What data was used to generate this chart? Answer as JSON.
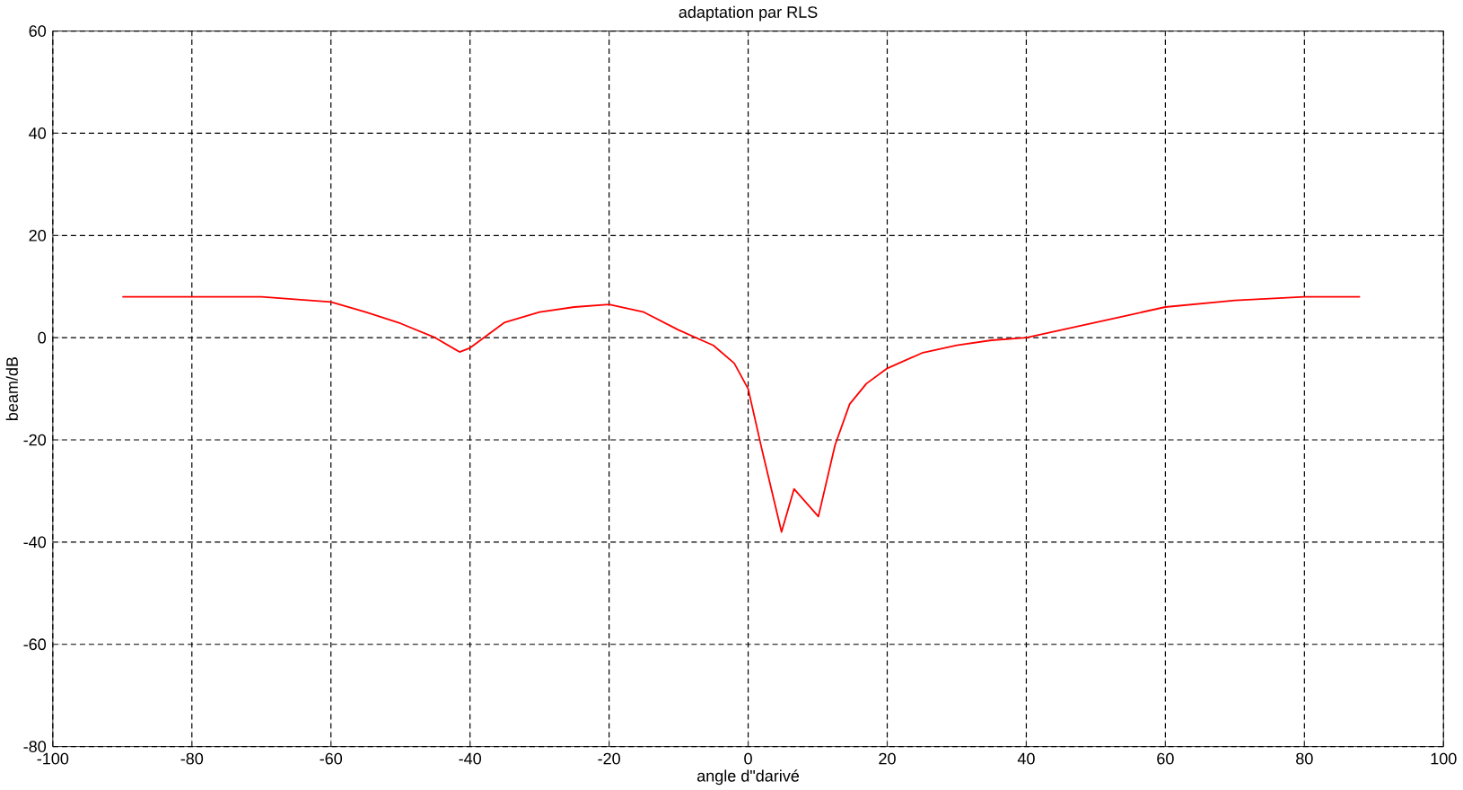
{
  "chart_data": {
    "type": "line",
    "title": "adaptation par RLS",
    "xlabel": "angle d\"darivé",
    "ylabel": "beam/dB",
    "xlim": [
      -100,
      100
    ],
    "ylim": [
      -80,
      60
    ],
    "xticks": [
      -100,
      -80,
      -60,
      -40,
      -20,
      0,
      20,
      40,
      60,
      80,
      100
    ],
    "yticks": [
      -80,
      -60,
      -40,
      -20,
      0,
      20,
      40,
      60
    ],
    "grid": true,
    "series": [
      {
        "color": "#ff0000",
        "x": [
          -90,
          -80,
          -70,
          -60,
          -55,
          -50,
          -45,
          -41.5,
          -40,
          -35,
          -30,
          -25,
          -20,
          -15,
          -10,
          -5,
          -2,
          0,
          2,
          4.8,
          6.6,
          10.1,
          12.5,
          14.6,
          17,
          20,
          25,
          30,
          35,
          40,
          45,
          50,
          55,
          60,
          70,
          80,
          88
        ],
        "values": [
          8,
          8,
          8,
          7,
          5,
          2.8,
          0,
          -2.8,
          -2,
          3,
          5,
          6,
          6.5,
          5,
          1.5,
          -1.5,
          -5,
          -10,
          -22,
          -38,
          -29.6,
          -35,
          -21,
          -13,
          -9,
          -6,
          -3,
          -1.5,
          -0.5,
          0,
          1.5,
          3,
          4.5,
          6,
          7.3,
          8,
          8
        ]
      }
    ]
  }
}
